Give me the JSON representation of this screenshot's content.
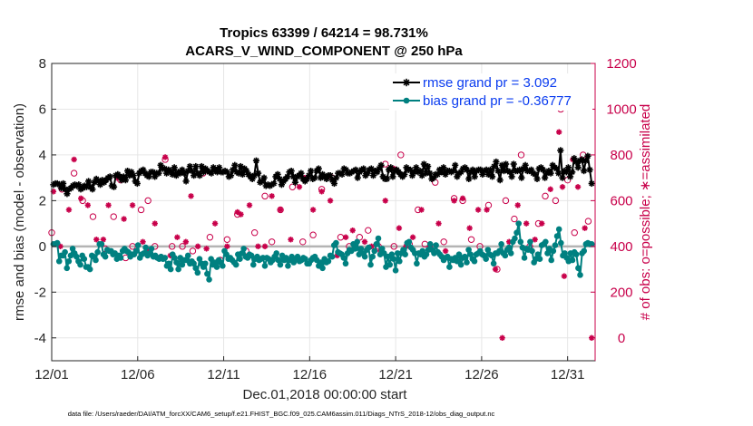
{
  "chart_data": {
    "type": "line",
    "title_line1": "Tropics 63399 / 64214 = 98.731%",
    "title_line2": "ACARS_V_WIND_COMPONENT @ 250 hPa",
    "xlabel": "Dec.01,2018 00:00:00 start",
    "ylabel_left": "rmse and bias (model - observation)",
    "ylabel_right": "# of obs: o=possible; ∗=assimilated",
    "ylim_left": [
      -5,
      8
    ],
    "ylim_right": [
      -100,
      1200
    ],
    "xlim_days": [
      0,
      31.6
    ],
    "left_ticks": [
      "-4",
      "-2",
      "0",
      "2",
      "4",
      "6",
      "8"
    ],
    "right_ticks": [
      "0",
      "200",
      "400",
      "600",
      "800",
      "1000",
      "1200"
    ],
    "x_ticks": [
      {
        "day": 0,
        "label": "12/01"
      },
      {
        "day": 5,
        "label": "12/06"
      },
      {
        "day": 10,
        "label": "12/11"
      },
      {
        "day": 15,
        "label": "12/16"
      },
      {
        "day": 20,
        "label": "12/21"
      },
      {
        "day": 25,
        "label": "12/26"
      },
      {
        "day": 30,
        "label": "12/31"
      }
    ],
    "legend": [
      {
        "name": "rmse grand pr = 3.092",
        "color": "#000000",
        "marker": "star"
      },
      {
        "name": "bias grand pr = -0.36777",
        "color": "#008080",
        "marker": "circle"
      }
    ],
    "rmse": [
      2.7,
      2.75,
      2.75,
      2.7,
      2.55,
      2.75,
      2.5,
      2.3,
      2.5,
      2.55,
      2.65,
      2.7,
      2.65,
      2.7,
      2.5,
      2.55,
      2.65,
      2.6,
      2.85,
      2.6,
      2.5,
      2.8,
      2.95,
      2.85,
      2.7,
      2.9,
      2.8,
      2.9,
      3.0,
      3.05,
      2.65,
      2.6,
      3.1,
      3.15,
      3.05,
      2.9,
      3.05,
      2.9,
      3.3,
      3.1,
      3.25,
      3.1,
      2.85,
      2.75,
      3.2,
      3.3,
      3.35,
      3.2,
      3.1,
      3.05,
      3.25,
      3.25,
      3.05,
      3.2,
      3.2,
      3.55,
      3.4,
      3.4,
      3.2,
      3.35,
      3.3,
      3.15,
      3.45,
      3.1,
      3.25,
      3.2,
      3.35,
      3.2,
      2.85,
      3.3,
      3.5,
      3.3,
      3.1,
      3.5,
      3.2,
      3.1,
      3.5,
      3.25,
      3.4,
      3.3,
      3.25,
      3.2,
      3.45,
      3.35,
      3.25,
      3.45,
      3.25,
      3.25,
      3.3,
      3.25,
      3.05,
      3.1,
      3.35,
      3.55,
      3.25,
      3.2,
      3.5,
      3.15,
      3.4,
      3.3,
      3.15,
      3.05,
      2.95,
      3.1,
      3.75,
      3.2,
      2.8,
      2.85,
      3.0,
      2.65,
      2.7,
      2.65,
      2.7,
      2.75,
      3.05,
      3.15,
      2.95,
      2.7,
      2.85,
      2.95,
      3.05,
      3.25,
      3.3,
      3.05,
      2.8,
      3.05,
      3.1,
      3.2,
      2.95,
      2.85,
      2.95,
      3.1,
      3.3,
      2.95,
      3.0,
      3.3,
      3.4,
      3.0,
      3.15,
      3.05,
      2.95,
      3.1,
      3.1,
      2.9,
      2.75,
      3.0,
      3.2,
      3.2,
      3.15,
      3.4,
      3.35,
      3.2,
      3.2,
      3.25,
      3.3,
      3.35,
      3.0,
      3.25,
      3.35,
      3.4,
      3.1,
      3.2,
      3.35,
      3.4,
      3.1,
      3.3,
      3.25,
      3.4,
      3.55,
      3.05,
      2.95,
      2.95,
      3.35,
      3.45,
      3.05,
      3.3,
      3.35,
      3.25,
      3.15,
      3.05,
      3.15,
      3.45,
      3.35,
      3.35,
      3.1,
      3.25,
      3.45,
      3.25,
      3.3,
      3.1,
      3.6,
      3.2,
      3.5,
      3.2,
      2.95,
      3.0,
      3.15,
      3.15,
      3.35,
      3.25,
      3.45,
      3.15,
      3.3,
      3.3,
      3.25,
      3.3,
      3.55,
      3.05,
      3.2,
      3.25,
      3.4,
      3.45,
      3.35,
      2.95,
      3.25,
      3.35,
      3.05,
      3.3,
      3.35,
      3.35,
      3.15,
      3.3,
      3.35,
      3.15,
      3.35,
      3.05,
      3.5,
      3.7,
      3.3,
      2.9,
      3.55,
      3.3,
      3.6,
      3.3,
      3.25,
      3.05,
      3.6,
      3.3,
      3.3,
      3.35,
      3.0,
      3.4,
      3.55,
      3.3,
      3.3,
      3.35,
      3.2,
      3.15,
      2.95,
      3.4,
      3.45,
      3.35,
      3.0,
      3.2,
      3.3,
      3.2,
      3.55,
      3.45,
      3.4,
      3.2,
      4.2,
      3.0,
      3.3,
      3.25,
      3.45,
      3.05,
      3.25,
      3.85,
      3.7,
      3.45,
      3.75,
      3.8,
      3.3,
      3.75,
      3.95,
      3.35,
      2.75
    ],
    "bias": [
      0.1,
      0.1,
      0.15,
      -0.65,
      -0.4,
      -0.4,
      -0.25,
      -0.95,
      -0.65,
      -0.4,
      -0.1,
      -0.3,
      -0.45,
      -0.65,
      -0.8,
      -0.4,
      -0.55,
      -0.9,
      -0.9,
      -1.0,
      -0.4,
      -0.45,
      -0.6,
      -0.25,
      0.1,
      0.1,
      -0.35,
      -0.45,
      -0.15,
      -0.2,
      -0.2,
      -0.35,
      -0.3,
      -0.55,
      -0.4,
      -0.5,
      -0.2,
      -0.1,
      -0.2,
      -0.25,
      -0.45,
      -0.35,
      -0.35,
      -0.2,
      0.05,
      -0.5,
      -0.35,
      -0.3,
      -0.05,
      -0.4,
      -0.3,
      -0.1,
      -0.45,
      -0.4,
      -0.5,
      -0.55,
      -0.45,
      -0.55,
      -0.5,
      -0.85,
      -0.75,
      -1.0,
      -0.35,
      -0.5,
      -0.7,
      -1.0,
      -0.5,
      -0.8,
      -0.6,
      -0.6,
      -0.4,
      -0.75,
      -0.65,
      -0.75,
      -0.95,
      -1.15,
      -0.55,
      -0.75,
      -0.9,
      -0.75,
      -1.2,
      -1.45,
      -0.55,
      -0.8,
      -0.7,
      -0.9,
      -0.6,
      -0.7,
      -0.85,
      -0.2,
      -0.35,
      -0.55,
      -0.5,
      -0.6,
      -0.7,
      -0.8,
      -0.35,
      -0.55,
      -0.3,
      -0.1,
      -0.45,
      -0.5,
      -0.35,
      -0.4,
      -0.8,
      -0.55,
      -0.45,
      -0.6,
      -0.55,
      -0.5,
      -0.85,
      -0.5,
      -0.55,
      -0.7,
      -0.6,
      -0.45,
      -0.3,
      -0.6,
      -0.8,
      -0.4,
      -0.6,
      -0.5,
      -0.85,
      -0.6,
      -0.45,
      -0.7,
      -0.55,
      -0.45,
      -0.65,
      -0.6,
      -0.5,
      -0.55,
      -0.75,
      -0.75,
      -0.6,
      -0.5,
      -0.45,
      -0.6,
      -0.85,
      -0.7,
      -0.95,
      -0.55,
      -0.7,
      -0.65,
      -0.4,
      -0.45,
      0.05,
      0.15,
      -0.25,
      -0.3,
      -0.35,
      -0.5,
      -0.75,
      -0.3,
      -0.15,
      -0.2,
      0.1,
      -0.1,
      0.2,
      -0.35,
      -0.1,
      -0.3,
      -0.45,
      -0.15,
      -0.05,
      -0.8,
      -0.45,
      -0.2,
      0.1,
      0.35,
      -0.35,
      -0.1,
      -0.3,
      -0.9,
      -0.45,
      -0.8,
      -0.35,
      -0.55,
      -1.05,
      -0.3,
      -0.65,
      -0.3,
      -0.15,
      -0.35,
      0.15,
      0.2,
      -0.05,
      -0.15,
      -0.3,
      -0.75,
      -0.3,
      -0.35,
      -0.2,
      -0.45,
      -0.35,
      -0.15,
      0.1,
      -0.15,
      -0.3,
      0.05,
      -0.25,
      -0.35,
      -0.45,
      -0.6,
      -0.5,
      -0.45,
      -0.9,
      -0.55,
      -0.6,
      -0.5,
      -0.65,
      -0.35,
      -0.8,
      -0.5,
      -0.45,
      -0.7,
      -0.15,
      -0.35,
      -0.55,
      -0.65,
      -0.35,
      -0.3,
      -0.2,
      -0.35,
      -0.4,
      -0.55,
      -0.15,
      -0.35,
      -0.4,
      -0.75,
      -0.3,
      -0.3,
      -0.2,
      0.1,
      -0.3,
      -0.4,
      -0.15,
      -0.05,
      -0.3,
      0.2,
      0.35,
      0.6,
      1.0,
      0.2,
      -0.05,
      -0.5,
      -0.1,
      -0.15,
      0.2,
      -0.2,
      -0.7,
      -0.55,
      -0.35,
      -0.55,
      0.05,
      0.1,
      0.2,
      -0.3,
      -0.1,
      -0.6,
      -0.2,
      0.05,
      0.45,
      0.75,
      0.15,
      -0.4,
      -0.3,
      -0.5,
      -0.65,
      -0.3,
      -0.6,
      -0.25,
      -0.35,
      -0.95,
      -1.25,
      -0.3,
      -0.2,
      0.1,
      0.15,
      0.1,
      0.1
    ],
    "obs_possible": [
      {
        "day": 0.0,
        "n": 460
      },
      {
        "day": 0.6,
        "n": 650
      },
      {
        "day": 1.3,
        "n": 720
      },
      {
        "day": 1.8,
        "n": 600
      },
      {
        "day": 2.4,
        "n": 530
      },
      {
        "day": 3.1,
        "n": 390
      },
      {
        "day": 3.6,
        "n": 530
      },
      {
        "day": 4.0,
        "n": 690
      },
      {
        "day": 4.3,
        "n": 350
      },
      {
        "day": 4.7,
        "n": 400
      },
      {
        "day": 5.2,
        "n": 560
      },
      {
        "day": 5.6,
        "n": 600
      },
      {
        "day": 6.0,
        "n": 400
      },
      {
        "day": 6.3,
        "n": 350
      },
      {
        "day": 6.6,
        "n": 780
      },
      {
        "day": 7.0,
        "n": 400
      },
      {
        "day": 7.6,
        "n": 400
      },
      {
        "day": 8.2,
        "n": 380
      },
      {
        "day": 8.8,
        "n": 720
      },
      {
        "day": 9.2,
        "n": 440
      },
      {
        "day": 9.8,
        "n": 340
      },
      {
        "day": 10.2,
        "n": 430
      },
      {
        "day": 10.8,
        "n": 540
      },
      {
        "day": 11.3,
        "n": 380
      },
      {
        "day": 11.8,
        "n": 460
      },
      {
        "day": 12.4,
        "n": 620
      },
      {
        "day": 12.8,
        "n": 420
      },
      {
        "day": 13.3,
        "n": 560
      },
      {
        "day": 14.0,
        "n": 660
      },
      {
        "day": 14.6,
        "n": 420
      },
      {
        "day": 15.2,
        "n": 450
      },
      {
        "day": 15.7,
        "n": 650
      },
      {
        "day": 16.3,
        "n": 700
      },
      {
        "day": 16.8,
        "n": 440
      },
      {
        "day": 17.3,
        "n": 400
      },
      {
        "day": 17.9,
        "n": 440
      },
      {
        "day": 18.4,
        "n": 470
      },
      {
        "day": 19.0,
        "n": 400
      },
      {
        "day": 19.4,
        "n": 760
      },
      {
        "day": 19.9,
        "n": 400
      },
      {
        "day": 20.3,
        "n": 800
      },
      {
        "day": 20.8,
        "n": 410
      },
      {
        "day": 21.3,
        "n": 560
      },
      {
        "day": 21.7,
        "n": 410
      },
      {
        "day": 22.3,
        "n": 680
      },
      {
        "day": 22.8,
        "n": 420
      },
      {
        "day": 23.4,
        "n": 610
      },
      {
        "day": 23.9,
        "n": 600
      },
      {
        "day": 24.4,
        "n": 430
      },
      {
        "day": 24.9,
        "n": 400
      },
      {
        "day": 25.4,
        "n": 580
      },
      {
        "day": 25.9,
        "n": 300
      },
      {
        "day": 26.4,
        "n": 600
      },
      {
        "day": 26.9,
        "n": 520
      },
      {
        "day": 27.3,
        "n": 800
      },
      {
        "day": 27.8,
        "n": 400
      },
      {
        "day": 28.3,
        "n": 500
      },
      {
        "day": 28.7,
        "n": 620
      },
      {
        "day": 29.3,
        "n": 600
      },
      {
        "day": 29.6,
        "n": 1000
      },
      {
        "day": 30.0,
        "n": 690
      },
      {
        "day": 30.4,
        "n": 460
      },
      {
        "day": 30.9,
        "n": 800
      },
      {
        "day": 31.2,
        "n": 510
      }
    ],
    "obs_assimilated": [
      {
        "day": 0.1,
        "n": 640
      },
      {
        "day": 0.5,
        "n": 400
      },
      {
        "day": 1.0,
        "n": 560
      },
      {
        "day": 1.3,
        "n": 780
      },
      {
        "day": 1.7,
        "n": 610
      },
      {
        "day": 2.1,
        "n": 580
      },
      {
        "day": 2.6,
        "n": 430
      },
      {
        "day": 3.0,
        "n": 430
      },
      {
        "day": 3.3,
        "n": 580
      },
      {
        "day": 3.8,
        "n": 700
      },
      {
        "day": 4.2,
        "n": 520
      },
      {
        "day": 4.7,
        "n": 580
      },
      {
        "day": 5.3,
        "n": 420
      },
      {
        "day": 5.6,
        "n": 380
      },
      {
        "day": 6.0,
        "n": 500
      },
      {
        "day": 6.6,
        "n": 790
      },
      {
        "day": 6.9,
        "n": 360
      },
      {
        "day": 7.3,
        "n": 440
      },
      {
        "day": 7.8,
        "n": 420
      },
      {
        "day": 8.1,
        "n": 620
      },
      {
        "day": 8.5,
        "n": 400
      },
      {
        "day": 9.0,
        "n": 390
      },
      {
        "day": 9.5,
        "n": 500
      },
      {
        "day": 10.2,
        "n": 400
      },
      {
        "day": 10.8,
        "n": 550
      },
      {
        "day": 11.0,
        "n": 540
      },
      {
        "day": 11.5,
        "n": 580
      },
      {
        "day": 12.0,
        "n": 400
      },
      {
        "day": 12.4,
        "n": 400
      },
      {
        "day": 12.8,
        "n": 620
      },
      {
        "day": 13.3,
        "n": 560
      },
      {
        "day": 13.9,
        "n": 430
      },
      {
        "day": 14.4,
        "n": 660
      },
      {
        "day": 14.7,
        "n": 700
      },
      {
        "day": 15.2,
        "n": 560
      },
      {
        "day": 15.7,
        "n": 640
      },
      {
        "day": 16.2,
        "n": 600
      },
      {
        "day": 16.6,
        "n": 360
      },
      {
        "day": 17.1,
        "n": 440
      },
      {
        "day": 17.5,
        "n": 470
      },
      {
        "day": 18.2,
        "n": 420
      },
      {
        "day": 18.6,
        "n": 400
      },
      {
        "day": 19.1,
        "n": 380
      },
      {
        "day": 19.4,
        "n": 600
      },
      {
        "day": 19.9,
        "n": 740
      },
      {
        "day": 20.2,
        "n": 480
      },
      {
        "day": 20.6,
        "n": 400
      },
      {
        "day": 21.0,
        "n": 440
      },
      {
        "day": 21.5,
        "n": 560
      },
      {
        "day": 22.0,
        "n": 400
      },
      {
        "day": 22.5,
        "n": 500
      },
      {
        "day": 22.9,
        "n": 380
      },
      {
        "day": 23.4,
        "n": 600
      },
      {
        "day": 23.9,
        "n": 610
      },
      {
        "day": 24.3,
        "n": 480
      },
      {
        "day": 24.8,
        "n": 560
      },
      {
        "day": 25.3,
        "n": 560
      },
      {
        "day": 25.8,
        "n": 300
      },
      {
        "day": 26.2,
        "n": 0
      },
      {
        "day": 26.6,
        "n": 420
      },
      {
        "day": 27.1,
        "n": 580
      },
      {
        "day": 27.6,
        "n": 500
      },
      {
        "day": 28.1,
        "n": 430
      },
      {
        "day": 28.5,
        "n": 500
      },
      {
        "day": 29.0,
        "n": 650
      },
      {
        "day": 29.5,
        "n": 900
      },
      {
        "day": 29.7,
        "n": 660
      },
      {
        "day": 29.8,
        "n": 270
      },
      {
        "day": 30.3,
        "n": 780
      },
      {
        "day": 30.6,
        "n": 660
      },
      {
        "day": 31.0,
        "n": 480
      },
      {
        "day": 31.4,
        "n": 0
      }
    ]
  },
  "footnote": "data file: /Users/raeder/DAI/ATM_forcXX/CAM6_setup/f.e21.FHIST_BGC.f09_025.CAM6assim.011/Diags_NTrS_2018-12/obs_diag_output.nc"
}
